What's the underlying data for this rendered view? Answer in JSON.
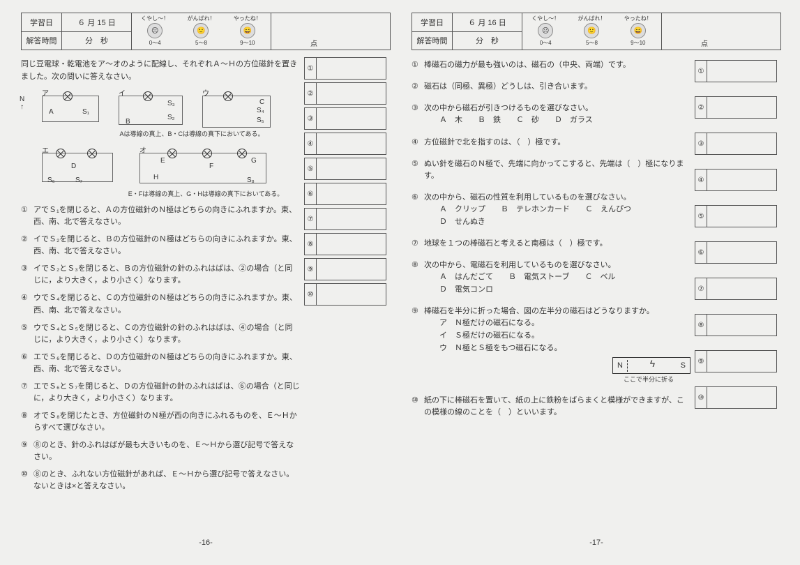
{
  "left": {
    "header": {
      "study_day": "学習日",
      "date": "６ 月 15 日",
      "answer_time": "解答時間",
      "time": "分　秒",
      "mascot_labels": [
        "くやし～！",
        "がんばれ！",
        "やったね！"
      ],
      "mascot_ranges": [
        "0～4",
        "5～8",
        "9～10"
      ],
      "score_unit": "点"
    },
    "intro": "同じ豆電球・乾電池をア～オのように配線し、それぞれＡ～Ｈの方位磁針を置きました。次の問いに答えなさい。",
    "diagram": {
      "labels": [
        "ア",
        "イ",
        "ウ",
        "エ",
        "オ"
      ],
      "notes": [
        "Aは導線の真上、B・Cは導線の真下においてある。",
        "E・Fは導線の真上、G・Hは導線の真下においてある。"
      ],
      "compass": "N"
    },
    "questions": [
      "アでＳ₁を閉じると、Ａの方位磁針のＮ極はどちらの向きにふれますか。東、西、南、北で答えなさい。",
      "イでＳ₂を閉じると、Ｂの方位磁針のＮ極はどちらの向きにふれますか。東、西、南、北で答えなさい。",
      "イでＳ₂とＳ₃を閉じると、Ｂの方位磁針の針のふれはばは、②の場合（と同じに，より大きく，より小さく）なります。",
      "ウでＳ₄を閉じると、Ｃの方位磁針のＮ極はどちらの向きにふれますか。東、西、南、北で答えなさい。",
      "ウでＳ₄とＳ₅を閉じると、Ｃの方位磁針の針のふれはばは、④の場合（と同じに，より大きく，より小さく）なります。",
      "エでＳ₆を閉じると、Ｄの方位磁針のＮ極はどちらの向きにふれますか。東、西、南、北で答えなさい。",
      "エでＳ₆とＳ₇を閉じると、Ｄの方位磁針の針のふれはばは、⑥の場合（と同じに，より大きく，より小さく）なります。",
      "オでＳ₈を閉じたとき、方位磁針のＮ極が西の向きにふれるものを、Ｅ～Ｈからすべて選びなさい。",
      "⑧のとき、針のふれはばが最も大きいものを、Ｅ～Ｈから選び記号で答えなさい。",
      "⑧のとき、ふれない方位磁針があれば、Ｅ～Ｈから選び記号で答えなさい。ないときは×と答えなさい。"
    ],
    "q_numbers": [
      "①",
      "②",
      "③",
      "④",
      "⑤",
      "⑥",
      "⑦",
      "⑧",
      "⑨",
      "⑩"
    ],
    "page_number": "-16-"
  },
  "right": {
    "header": {
      "study_day": "学習日",
      "date": "６ 月 16 日",
      "answer_time": "解答時間",
      "time": "分　秒",
      "mascot_labels": [
        "くやし～！",
        "がんばれ！",
        "やったね！"
      ],
      "mascot_ranges": [
        "0～4",
        "5～8",
        "9～10"
      ],
      "score_unit": "点"
    },
    "questions": [
      {
        "t": "棒磁石の磁力が最も強いのは、磁石の（中央、両端）です。"
      },
      {
        "t": "磁石は（同極、異極）どうしは、引き合います。"
      },
      {
        "t": "次の中から磁石が引きつけるものを選びなさい。",
        "c": "Ａ　木　　Ｂ　鉄　　Ｃ　砂　　Ｄ　ガラス"
      },
      {
        "t": "方位磁針で北を指すのは、（　）極です。"
      },
      {
        "t": "ぬい針を磁石のＮ極で、先端に向かってこすると、先端は（　）極になります。"
      },
      {
        "t": "次の中から、磁石の性質を利用しているものを選びなさい。",
        "c": "Ａ　クリップ　　Ｂ　テレホンカード　　Ｃ　えんぴつ\nＤ　せんぬき"
      },
      {
        "t": "地球を１つの棒磁石と考えると南極は（　）極です。"
      },
      {
        "t": "次の中から、電磁石を利用しているものを選びなさい。",
        "c": "Ａ　はんだごて　　Ｂ　電気ストーブ　　Ｃ　ベル\nＤ　電気コンロ"
      },
      {
        "t": "棒磁石を半分に折った場合、図の左半分の磁石はどうなりますか。",
        "c": "ア　Ｎ極だけの磁石になる。\nイ　Ｓ極だけの磁石になる。\nウ　Ｎ極とＳ極をもつ磁石になる。",
        "fig": true
      },
      {
        "t": "紙の下に棒磁石を置いて、紙の上に鉄粉をばらまくと模様ができますが、この模様の線のことを（　）といいます。"
      }
    ],
    "q_numbers": [
      "①",
      "②",
      "③",
      "④",
      "⑤",
      "⑥",
      "⑦",
      "⑧",
      "⑨",
      "⑩"
    ],
    "magnet": {
      "n": "N",
      "s": "S",
      "caption": "ここで半分に折る"
    },
    "page_number": "-17-"
  }
}
